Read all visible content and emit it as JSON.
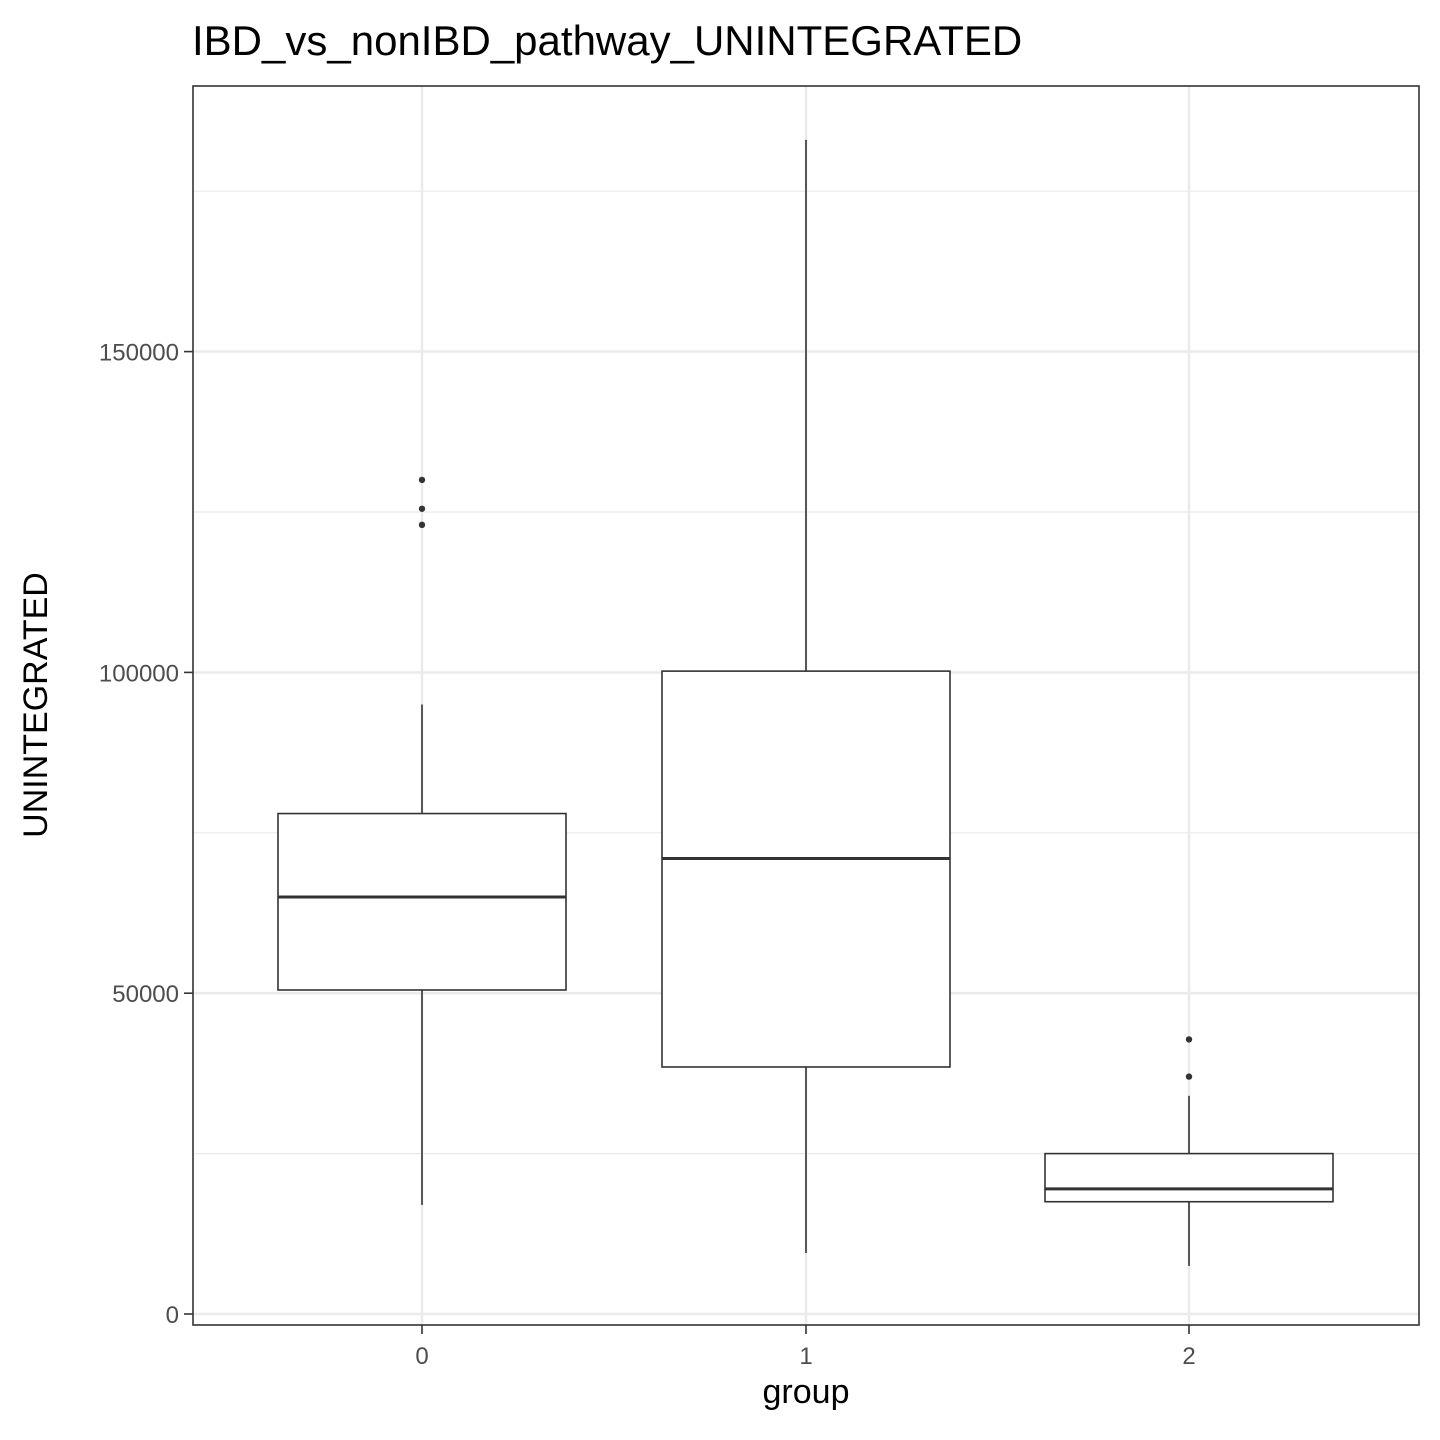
{
  "chart_data": {
    "type": "box",
    "title": "IBD_vs_nonIBD_pathway_UNINTEGRATED",
    "xlabel": "group",
    "ylabel": "UNINTEGRATED",
    "categories": [
      "0",
      "1",
      "2"
    ],
    "y_ticks": [
      0,
      50000,
      100000,
      150000
    ],
    "y_tick_labels": [
      "0",
      "50000",
      "100000",
      "150000"
    ],
    "ylim": [
      -2000,
      192000
    ],
    "grid": true,
    "theme": "bw",
    "boxes": [
      {
        "group": "0",
        "whisker_low": 17000,
        "q1": 50500,
        "median": 65000,
        "q3": 78000,
        "whisker_high": 95000,
        "outliers": [
          123000,
          125500,
          130000
        ]
      },
      {
        "group": "1",
        "whisker_low": 9500,
        "q1": 38500,
        "median": 71000,
        "q3": 100200,
        "whisker_high": 183000,
        "outliers": []
      },
      {
        "group": "2",
        "whisker_low": 7500,
        "q1": 17500,
        "median": 19500,
        "q3": 25000,
        "whisker_high": 34000,
        "outliers": [
          37000,
          42800
        ]
      }
    ]
  }
}
